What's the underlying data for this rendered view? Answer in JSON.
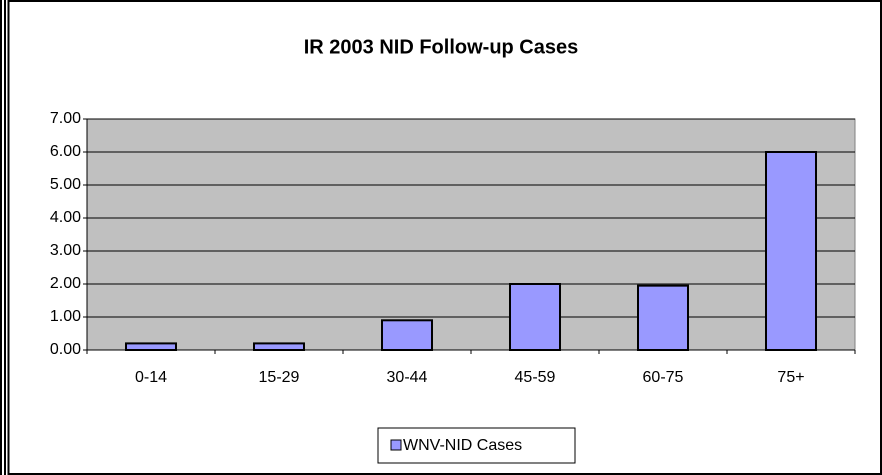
{
  "chart_data": {
    "type": "bar",
    "title": "IR 2003 NID Follow-up Cases",
    "categories": [
      "0-14",
      "15-29",
      "30-44",
      "45-59",
      "60-75",
      "75+"
    ],
    "series": [
      {
        "name": "WNV-NID Cases",
        "color": "#9999ff",
        "values": [
          0.2,
          0.2,
          0.9,
          2.0,
          1.95,
          6.0
        ]
      }
    ],
    "ylim": [
      0,
      7
    ],
    "yticks": [
      {
        "value": 0,
        "label": "0.00"
      },
      {
        "value": 1,
        "label": "1.00"
      },
      {
        "value": 2,
        "label": "2.00"
      },
      {
        "value": 3,
        "label": "3.00"
      },
      {
        "value": 4,
        "label": "4.00"
      },
      {
        "value": 5,
        "label": "5.00"
      },
      {
        "value": 6,
        "label": "6.00"
      },
      {
        "value": 7,
        "label": "7.00"
      }
    ],
    "grid": true,
    "legend": "bottom"
  }
}
